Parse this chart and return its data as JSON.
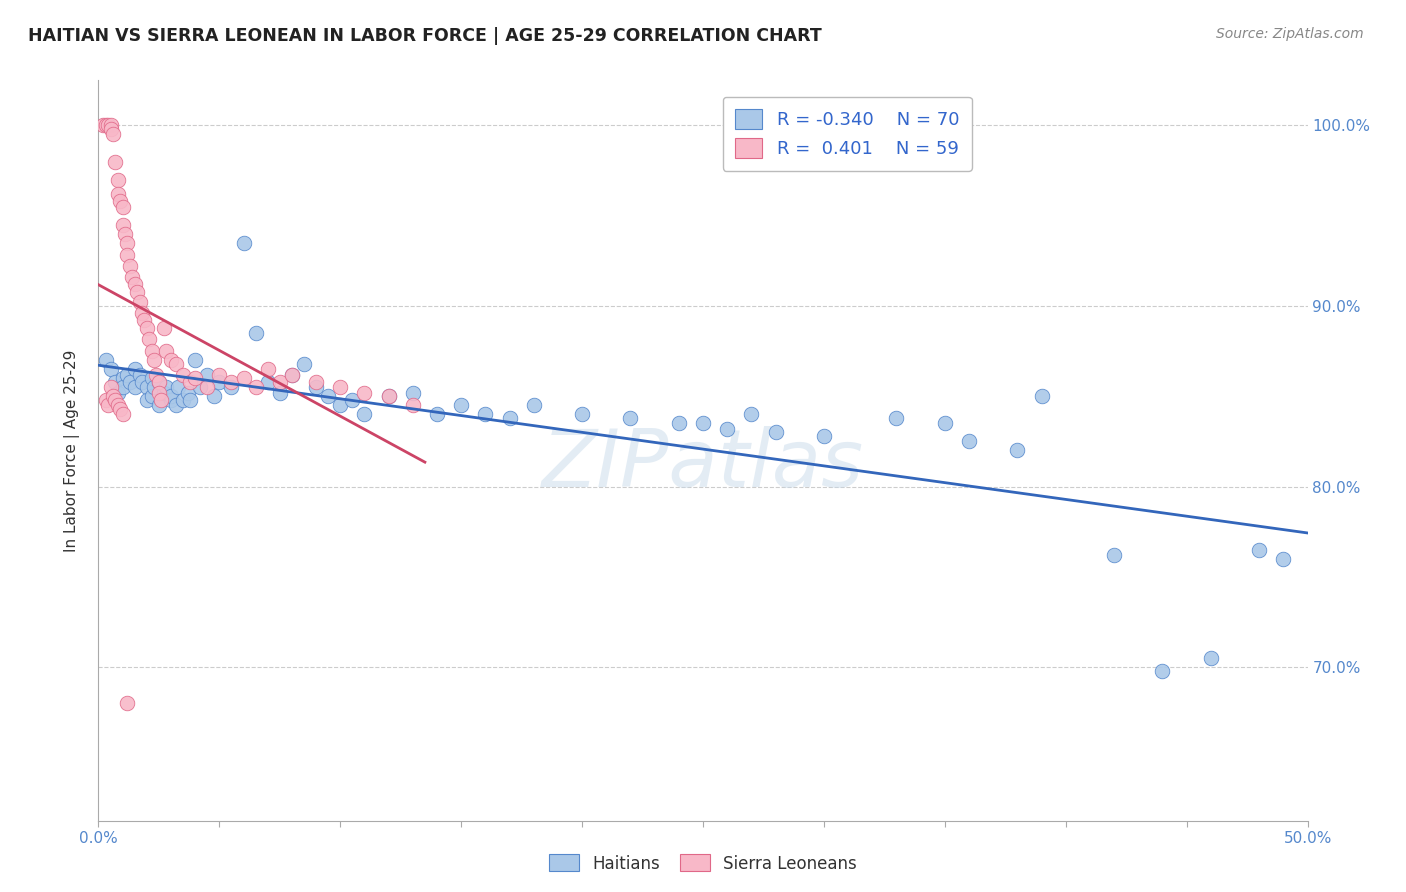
{
  "title": "HAITIAN VS SIERRA LEONEAN IN LABOR FORCE | AGE 25-29 CORRELATION CHART",
  "source": "Source: ZipAtlas.com",
  "ylabel": "In Labor Force | Age 25-29",
  "xmin": 0.0,
  "xmax": 0.5,
  "ymin": 0.615,
  "ymax": 1.025,
  "yticks": [
    0.7,
    0.8,
    0.9,
    1.0
  ],
  "ytick_labels": [
    "70.0%",
    "80.0%",
    "90.0%",
    "100.0%"
  ],
  "xtick_labels_shown": [
    "0.0%",
    "50.0%"
  ],
  "xtick_vals_shown": [
    0.0,
    0.5
  ],
  "legend_labels": [
    "Haitians",
    "Sierra Leoneans"
  ],
  "R_blue": -0.34,
  "N_blue": 70,
  "R_pink": 0.401,
  "N_pink": 59,
  "blue_scatter_color": "#aac8e8",
  "blue_edge_color": "#5588cc",
  "pink_scatter_color": "#f8b8c8",
  "pink_edge_color": "#e06888",
  "blue_line_color": "#3366bb",
  "pink_line_color": "#cc4466",
  "watermark": "ZIPatlas",
  "blue_scatter_x": [
    0.003,
    0.005,
    0.007,
    0.008,
    0.01,
    0.01,
    0.012,
    0.013,
    0.015,
    0.015,
    0.017,
    0.018,
    0.02,
    0.02,
    0.022,
    0.022,
    0.023,
    0.025,
    0.025,
    0.027,
    0.028,
    0.03,
    0.03,
    0.032,
    0.033,
    0.035,
    0.037,
    0.038,
    0.04,
    0.042,
    0.045,
    0.048,
    0.05,
    0.055,
    0.06,
    0.065,
    0.07,
    0.075,
    0.08,
    0.085,
    0.09,
    0.095,
    0.1,
    0.105,
    0.11,
    0.12,
    0.13,
    0.14,
    0.15,
    0.16,
    0.17,
    0.18,
    0.2,
    0.22,
    0.24,
    0.26,
    0.28,
    0.3,
    0.33,
    0.36,
    0.39,
    0.42,
    0.44,
    0.46,
    0.48,
    0.49,
    0.35,
    0.38,
    0.25,
    0.27
  ],
  "blue_scatter_y": [
    0.87,
    0.865,
    0.858,
    0.852,
    0.86,
    0.855,
    0.862,
    0.858,
    0.865,
    0.855,
    0.862,
    0.858,
    0.855,
    0.848,
    0.86,
    0.85,
    0.855,
    0.858,
    0.845,
    0.852,
    0.855,
    0.848,
    0.85,
    0.845,
    0.855,
    0.848,
    0.852,
    0.848,
    0.87,
    0.855,
    0.862,
    0.85,
    0.858,
    0.855,
    0.935,
    0.885,
    0.858,
    0.852,
    0.862,
    0.868,
    0.855,
    0.85,
    0.845,
    0.848,
    0.84,
    0.85,
    0.852,
    0.84,
    0.845,
    0.84,
    0.838,
    0.845,
    0.84,
    0.838,
    0.835,
    0.832,
    0.83,
    0.828,
    0.838,
    0.825,
    0.85,
    0.762,
    0.698,
    0.705,
    0.765,
    0.76,
    0.835,
    0.82,
    0.835,
    0.84
  ],
  "pink_scatter_x": [
    0.002,
    0.003,
    0.004,
    0.005,
    0.005,
    0.006,
    0.007,
    0.008,
    0.008,
    0.009,
    0.01,
    0.01,
    0.011,
    0.012,
    0.012,
    0.013,
    0.014,
    0.015,
    0.016,
    0.017,
    0.018,
    0.019,
    0.02,
    0.021,
    0.022,
    0.023,
    0.024,
    0.025,
    0.025,
    0.026,
    0.027,
    0.028,
    0.03,
    0.032,
    0.035,
    0.038,
    0.04,
    0.045,
    0.05,
    0.055,
    0.06,
    0.065,
    0.07,
    0.075,
    0.08,
    0.09,
    0.1,
    0.11,
    0.12,
    0.13,
    0.003,
    0.004,
    0.005,
    0.006,
    0.007,
    0.008,
    0.009,
    0.01,
    0.012
  ],
  "pink_scatter_y": [
    1.0,
    1.0,
    1.0,
    1.0,
    0.998,
    0.995,
    0.98,
    0.97,
    0.962,
    0.958,
    0.955,
    0.945,
    0.94,
    0.935,
    0.928,
    0.922,
    0.916,
    0.912,
    0.908,
    0.902,
    0.896,
    0.892,
    0.888,
    0.882,
    0.875,
    0.87,
    0.862,
    0.858,
    0.852,
    0.848,
    0.888,
    0.875,
    0.87,
    0.868,
    0.862,
    0.858,
    0.86,
    0.855,
    0.862,
    0.858,
    0.86,
    0.855,
    0.865,
    0.858,
    0.862,
    0.858,
    0.855,
    0.852,
    0.85,
    0.845,
    0.848,
    0.845,
    0.855,
    0.85,
    0.848,
    0.845,
    0.843,
    0.84,
    0.68
  ]
}
